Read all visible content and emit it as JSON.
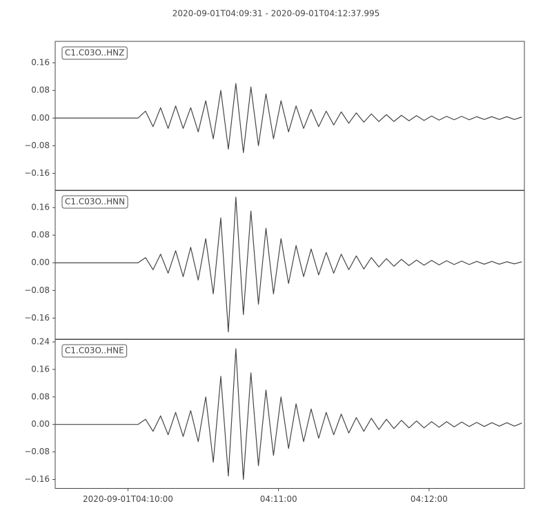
{
  "chart_data": [
    {
      "type": "line",
      "title": "2020-09-01T04:09:31  -  2020-09-01T04:12:37.995",
      "x": [
        0,
        3,
        6,
        9,
        12,
        15,
        18,
        21,
        24,
        27,
        30,
        33,
        36,
        39,
        42,
        45,
        48,
        51,
        54,
        57,
        60,
        63,
        66,
        69,
        72,
        75,
        78,
        81,
        84,
        87,
        90,
        93,
        96,
        99,
        102,
        105,
        108,
        111,
        114,
        117,
        120,
        123,
        126,
        129,
        132,
        135,
        138,
        141,
        144,
        147,
        150,
        153,
        156,
        159,
        162,
        165,
        168,
        171,
        174,
        177,
        180,
        183,
        186
      ],
      "xlim": [
        0,
        186.995
      ],
      "series": [
        {
          "name": "C1.C03O..HNZ",
          "color": "#454545",
          "values": [
            0,
            0,
            0,
            0,
            0,
            0,
            0,
            0,
            0,
            0,
            0,
            0,
            0.02,
            -0.025,
            0.03,
            -0.03,
            0.035,
            -0.03,
            0.03,
            -0.04,
            0.05,
            -0.06,
            0.08,
            -0.09,
            0.1,
            -0.1,
            0.09,
            -0.08,
            0.07,
            -0.06,
            0.05,
            -0.04,
            0.035,
            -0.03,
            0.025,
            -0.025,
            0.02,
            -0.02,
            0.018,
            -0.015,
            0.015,
            -0.012,
            0.012,
            -0.01,
            0.01,
            -0.01,
            0.008,
            -0.008,
            0.007,
            -0.007,
            0.006,
            -0.006,
            0.005,
            -0.005,
            0.005,
            -0.005,
            0.004,
            -0.004,
            0.004,
            -0.004,
            0.004,
            -0.004,
            0.003
          ]
        }
      ],
      "ylim": [
        -0.21,
        0.222
      ],
      "yticks": [
        {
          "value": -0.16,
          "label": "−0.16"
        },
        {
          "value": -0.08,
          "label": "−0.08"
        },
        {
          "value": 0,
          "label": "0.00"
        },
        {
          "value": 0.08,
          "label": "0.08"
        },
        {
          "value": 0.16,
          "label": "0.16"
        }
      ]
    },
    {
      "type": "line",
      "x": [
        0,
        3,
        6,
        9,
        12,
        15,
        18,
        21,
        24,
        27,
        30,
        33,
        36,
        39,
        42,
        45,
        48,
        51,
        54,
        57,
        60,
        63,
        66,
        69,
        72,
        75,
        78,
        81,
        84,
        87,
        90,
        93,
        96,
        99,
        102,
        105,
        108,
        111,
        114,
        117,
        120,
        123,
        126,
        129,
        132,
        135,
        138,
        141,
        144,
        147,
        150,
        153,
        156,
        159,
        162,
        165,
        168,
        171,
        174,
        177,
        180,
        183,
        186
      ],
      "xlim": [
        0,
        186.995
      ],
      "series": [
        {
          "name": "C1.C03O..HNN",
          "color": "#454545",
          "values": [
            0,
            0,
            0,
            0,
            0,
            0,
            0,
            0,
            0,
            0,
            0,
            0,
            0.015,
            -0.02,
            0.025,
            -0.03,
            0.035,
            -0.04,
            0.045,
            -0.05,
            0.07,
            -0.09,
            0.13,
            -0.2,
            0.19,
            -0.15,
            0.15,
            -0.12,
            0.1,
            -0.09,
            0.07,
            -0.06,
            0.05,
            -0.04,
            0.04,
            -0.035,
            0.03,
            -0.03,
            0.025,
            -0.02,
            0.02,
            -0.018,
            0.015,
            -0.012,
            0.012,
            -0.01,
            0.01,
            -0.008,
            0.008,
            -0.007,
            0.007,
            -0.006,
            0.006,
            -0.005,
            0.005,
            -0.005,
            0.004,
            -0.004,
            0.004,
            -0.004,
            0.003,
            -0.003,
            0.003
          ]
        }
      ],
      "ylim": [
        -0.222,
        0.21
      ],
      "yticks": [
        {
          "value": -0.16,
          "label": "−0.16"
        },
        {
          "value": -0.08,
          "label": "−0.08"
        },
        {
          "value": 0,
          "label": "0.00"
        },
        {
          "value": 0.08,
          "label": "0.08"
        },
        {
          "value": 0.16,
          "label": "0.16"
        }
      ]
    },
    {
      "type": "line",
      "x": [
        0,
        3,
        6,
        9,
        12,
        15,
        18,
        21,
        24,
        27,
        30,
        33,
        36,
        39,
        42,
        45,
        48,
        51,
        54,
        57,
        60,
        63,
        66,
        69,
        72,
        75,
        78,
        81,
        84,
        87,
        90,
        93,
        96,
        99,
        102,
        105,
        108,
        111,
        114,
        117,
        120,
        123,
        126,
        129,
        132,
        135,
        138,
        141,
        144,
        147,
        150,
        153,
        156,
        159,
        162,
        165,
        168,
        171,
        174,
        177,
        180,
        183,
        186
      ],
      "xlim": [
        0,
        186.995
      ],
      "xticks": [
        {
          "value": 29,
          "label": "2020-09-01T04:10:00"
        },
        {
          "value": 89,
          "label": "04:11:00"
        },
        {
          "value": 149,
          "label": "04:12:00"
        }
      ],
      "series": [
        {
          "name": "C1.C03O..HNE",
          "color": "#454545",
          "values": [
            0,
            0,
            0,
            0,
            0,
            0,
            0,
            0,
            0,
            0,
            0,
            0,
            0.015,
            -0.02,
            0.025,
            -0.03,
            0.035,
            -0.035,
            0.04,
            -0.05,
            0.08,
            -0.11,
            0.14,
            -0.15,
            0.22,
            -0.16,
            0.15,
            -0.12,
            0.1,
            -0.09,
            0.08,
            -0.07,
            0.06,
            -0.05,
            0.045,
            -0.04,
            0.035,
            -0.03,
            0.03,
            -0.025,
            0.02,
            -0.02,
            0.018,
            -0.015,
            0.015,
            -0.012,
            0.012,
            -0.01,
            0.01,
            -0.01,
            0.008,
            -0.008,
            0.008,
            -0.007,
            0.007,
            -0.006,
            0.006,
            -0.006,
            0.005,
            -0.005,
            0.005,
            -0.005,
            0.004
          ]
        }
      ],
      "ylim": [
        -0.186,
        0.248
      ],
      "yticks": [
        {
          "value": -0.16,
          "label": "−0.16"
        },
        {
          "value": -0.08,
          "label": "−0.08"
        },
        {
          "value": 0,
          "label": "0.00"
        },
        {
          "value": 0.08,
          "label": "0.08"
        },
        {
          "value": 0.16,
          "label": "0.16"
        },
        {
          "value": 0.24,
          "label": "0.24"
        }
      ]
    }
  ]
}
